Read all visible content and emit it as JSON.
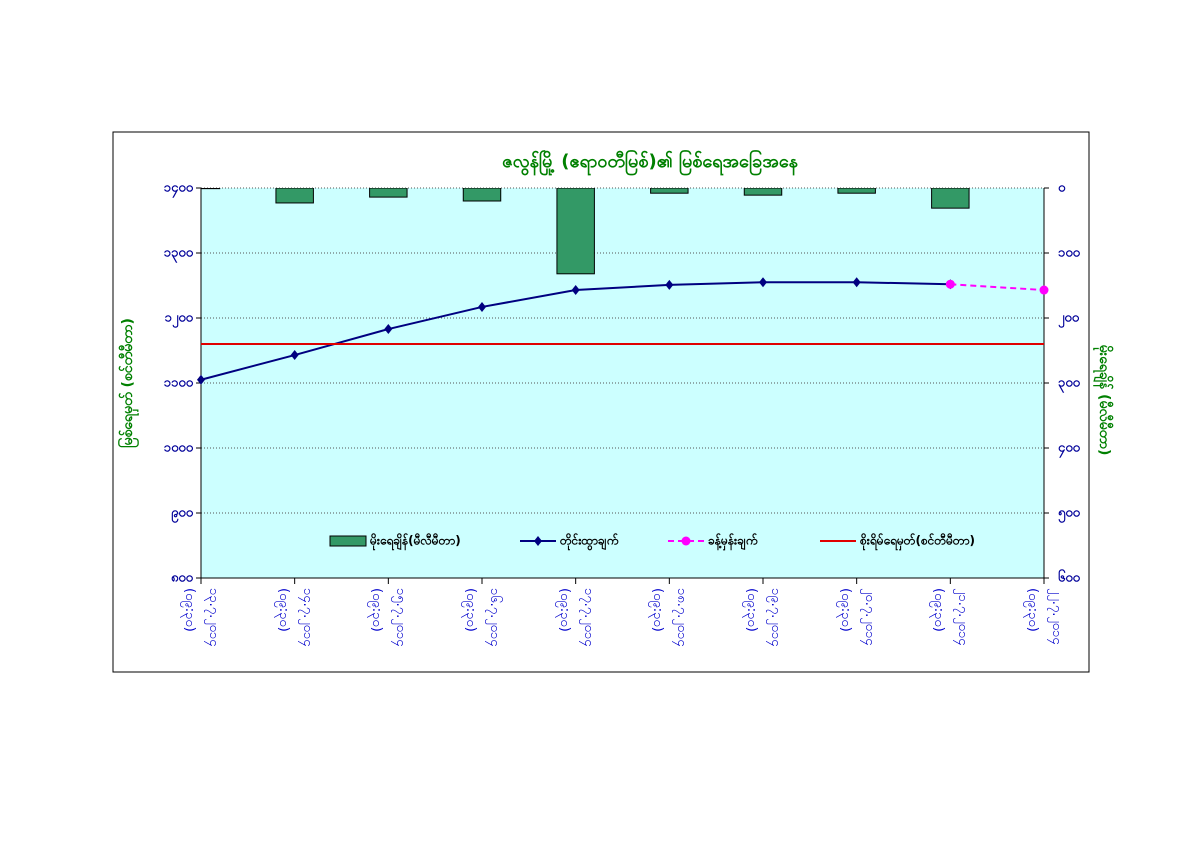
{
  "chart_data": {
    "type": "bar-line",
    "title": "ဇလွန်မြို့ (ဧရာဝတီမြစ်)၏ မြစ်ရေအခြေအနေ",
    "y_label": "မြစ်ရေမှတ် (စင်တီမီတာ)",
    "y2_label": "မိုးရေချိန် (မီလီမီတာ)",
    "categories": [
      "၁၃.၇.၂၀၁၄\n(၀၉:၃၀)",
      "၁၄.၇.၂၀၁၄\n(၀၉:၃၀)",
      "၁၅.၇.၂၀၁၄\n(၀၉:၃၀)",
      "၁၆.၇.၂၀၁၄\n(၀၉:၃၀)",
      "၁၇.၇.၂၀၁၄\n(၀၉:၃၀)",
      "၁၈.၇.၂၀၁၄\n(၀၉:၃၀)",
      "၁၉.၇.၂၀၁၄\n(၀၉:၃၀)",
      "၂၀.၇.၂၀၁၄\n(၀၉:၃၀)",
      "၂၁.၇.၂၀၁၄\n(၀၉:၃၀)",
      "၂၂.၇.၂၀၁၄\n(၀၉:၃၀)"
    ],
    "series": [
      {
        "name": "မိုးရေချိန်(မီလီမီတာ)",
        "type": "bar",
        "axis": "y2",
        "color": "#339966",
        "values": [
          1,
          23,
          14,
          20,
          132,
          8,
          11,
          8,
          31,
          0
        ]
      },
      {
        "name": "တိုင်းထွာချက်",
        "type": "line",
        "color": "#000080",
        "marker": "diamond",
        "values": [
          1105,
          1143,
          1183,
          1217,
          1243,
          1251,
          1255,
          1255,
          1252,
          null
        ]
      },
      {
        "name": "ခန့်မှန်းချက်",
        "type": "line",
        "color": "#ff00ff",
        "marker": "circle",
        "dashed": true,
        "values": [
          null,
          null,
          null,
          null,
          null,
          null,
          null,
          null,
          1252,
          1243
        ]
      },
      {
        "name": "စိုးရိမ်ရေမှတ်(စင်တီမီတာ)",
        "type": "hline",
        "color": "#e00000",
        "value": 1160
      }
    ],
    "ylim": [
      800,
      1400
    ],
    "yticks": [
      {
        "value": 800,
        "label": "၈၀၀"
      },
      {
        "value": 900,
        "label": "၉၀၀"
      },
      {
        "value": 1000,
        "label": "၁၀၀၀"
      },
      {
        "value": 1100,
        "label": "၁၁၀၀"
      },
      {
        "value": 1200,
        "label": "၁၂၀၀"
      },
      {
        "value": 1300,
        "label": "၁၃၀၀"
      },
      {
        "value": 1400,
        "label": "၁၄၀၀"
      }
    ],
    "y2lim": [
      600,
      0
    ],
    "y2ticks": [
      {
        "value": 0,
        "label": "၀"
      },
      {
        "value": 100,
        "label": "၁၀၀"
      },
      {
        "value": 200,
        "label": "၂၀၀"
      },
      {
        "value": 300,
        "label": "၃၀၀"
      },
      {
        "value": 400,
        "label": "၄၀၀"
      },
      {
        "value": 500,
        "label": "၅၀၀"
      },
      {
        "value": 600,
        "label": "၆၀၀"
      }
    ],
    "grid": true,
    "plot_background": "#ccffff"
  }
}
